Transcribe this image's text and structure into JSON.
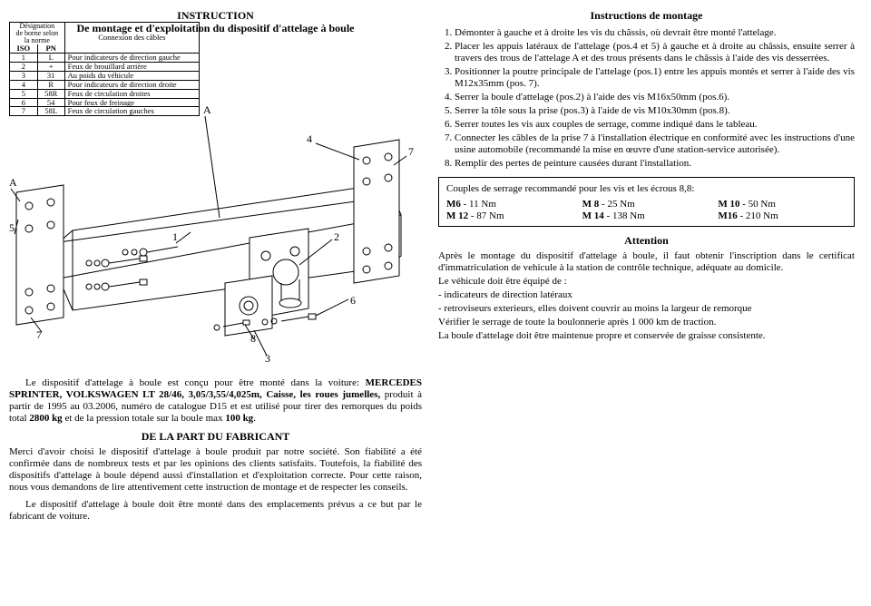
{
  "left": {
    "title1": "INSTRUCTION",
    "title2": "De montage et d'exploitation du dispositif d'attelage à boule",
    "conn_table": {
      "hdr_left_l1": "Désignation",
      "hdr_left_l2": "de borne selon",
      "hdr_left_l3": "la norme",
      "hdr_right": "Connexion des câbles",
      "sub_iso": "ISO",
      "sub_pn": "PN",
      "rows": [
        {
          "iso": "1",
          "pn": "L",
          "desc": "Pour indicateurs de direction gauche"
        },
        {
          "iso": "2",
          "pn": "+",
          "desc": "Feux de brouillard arrière"
        },
        {
          "iso": "3",
          "pn": "31",
          "desc": "Au poids du véhicule"
        },
        {
          "iso": "4",
          "pn": "R",
          "desc": "Pour indicateurs de direction droite"
        },
        {
          "iso": "5",
          "pn": "58R",
          "desc": "Feux de circulation droites"
        },
        {
          "iso": "6",
          "pn": "54",
          "desc": "Pour feux de freinage"
        },
        {
          "iso": "7",
          "pn": "58L",
          "desc": "Feux de circulation gauches"
        }
      ]
    },
    "labels": {
      "A": "A",
      "n1": "1",
      "n2": "2",
      "n3": "3",
      "n4": "4",
      "n5": "5",
      "n6": "6",
      "n7": "7",
      "n8": "8"
    },
    "para1": "Le dispositif d'attelage à boule est conçu pour être monté dans la voiture: MERCEDES SPRINTER, VOLKSWAGEN LT 28/46, 3,05/3,55/4,025m, Caisse, les roues jumelles,",
    "para1b": " produit à partir de 1995 au 03.2006, numéro de catalogue D15 et est utilisé pour tirer des remorques du poids total ",
    "para1_bold2": "2800 kg",
    "para1_tail": " et de la pression totale sur la boule max ",
    "para1_bold3": "100 kg",
    "para1_end": ".",
    "fab_title": "DE LA PART DU FABRICANT",
    "para2": "Merci d'avoir choisi le dispositif d'attelage à boule produit par notre société. Son fiabilité a été confirmée dans de nombreux tests et par les opinions des clients satisfaits. Toutefois, la fiabilité des dispositifs d'attelage à boule dépend aussi d'installation et d'exploitation correcte. Pour cette raison, nous vous demandons de lire attentivement cette instruction de montage et de respecter les conseils.",
    "para3": "Le dispositif d'attelage à boule doit être monté dans des emplacements prévus a ce but par le fabricant de voiture."
  },
  "right": {
    "title": "Instructions de montage",
    "steps": [
      "Démonter à gauche et à droite les vis du châssis, où devrait être monté l'attelage.",
      "Placer les appuis latéraux de l'attelage (pos.4 et 5) à gauche et à droite au châssis, ensuite serrer à travers des trous de l'attelage A et des trous présents dans le châssis à l'aide des vis desserrées.",
      "Positionner la poutre principale de l'attelage (pos.1) entre les appuis montés et serrer à l'aide des vis M12x35mm (pos. 7).",
      "Serrer la boule d'attelage (pos.2) à l'aide des vis M16x50mm (pos.6).",
      "Serrer la tôle sous la prise (pos.3) à l'aide de vis M10x30mm (pos.8).",
      "Serrer toutes les vis aux couples de serrage, comme indiqué dans le tableau.",
      "Connecter les câbles de la prise 7 à l'installation électrique en conformité avec les instructions d'une usine automobile (recommandé la mise en œuvre d'une station-service autorisée).",
      "Remplir des pertes de peinture causées durant l'installation."
    ],
    "torque": {
      "title": "Couples de serrage recommandé pour les vis et les écrous 8,8:",
      "cells": [
        "M6 - 11 Nm",
        "M 8 - 25 Nm",
        "M 10 - 50 Nm",
        "M 12 - 87 Nm",
        "M 14 - 138 Nm",
        "M16 - 210 Nm"
      ],
      "bold": [
        "M6",
        "M 8",
        "M 10",
        "M 12",
        "M 14",
        "M16"
      ],
      "plain": [
        " - 11 Nm",
        " - 25 Nm",
        " - 50 Nm",
        " - 87 Nm",
        " - 138 Nm",
        " - 210 Nm"
      ]
    },
    "attention": "Attention",
    "after_p1": "Après le montage du dispositif d'attelage à boule, il faut obtenir l'inscription dans le certificat d'immatriculation de vehicule à la station de contrôle technique, adéquate au domicile.",
    "after_p2": "Le véhicule doit être équipé de :",
    "after_li1": "- indicateurs de direction latéraux",
    "after_li2": "- retroviseurs exterieurs,  elles doivent couvrir au moins la largeur de remorque",
    "after_p3": "Vérifier le serrage de toute la boulonnerie après 1 000 km de traction.",
    "after_p4": "La boule d'attelage doit être maintenue propre et conservée de graisse consistente."
  }
}
